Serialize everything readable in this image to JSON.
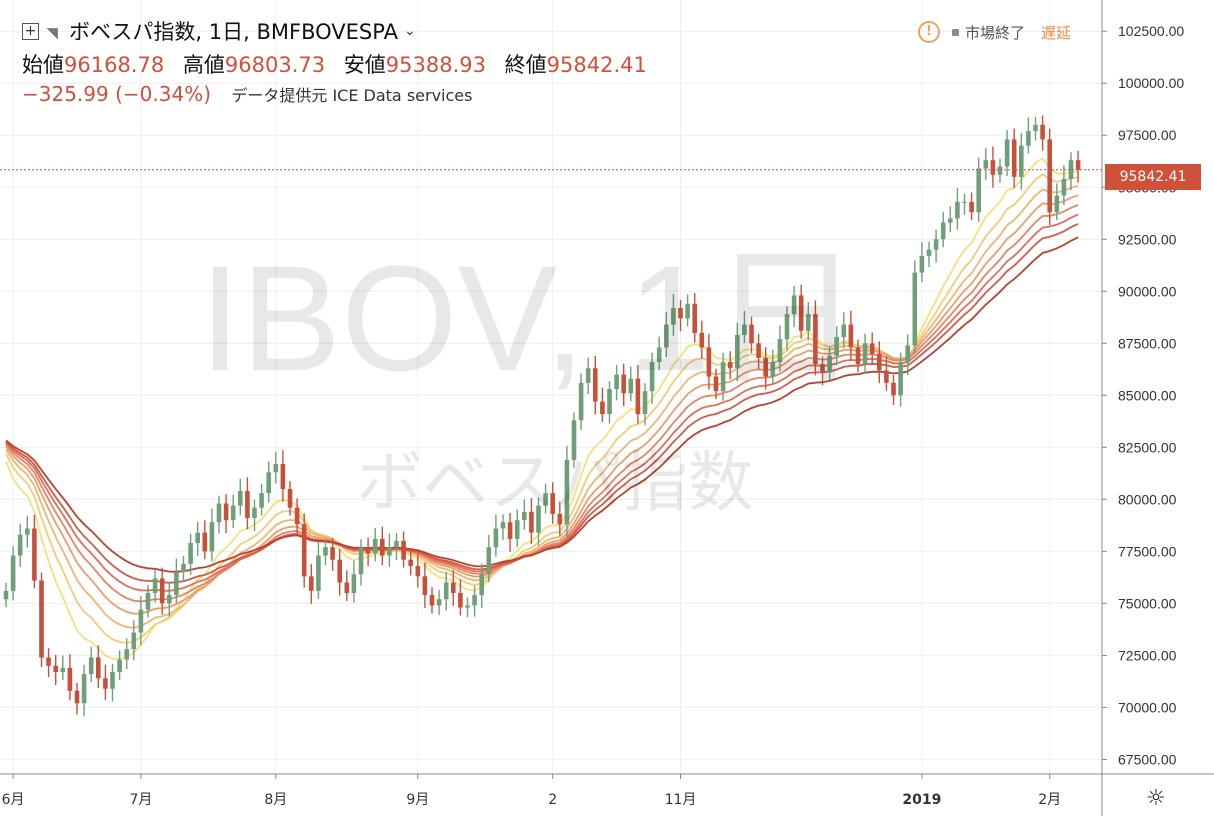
{
  "header": {
    "symbol_title": "ボベスパ指数, 1日, BMFBOVESPA",
    "ohlc": [
      {
        "label": "始値",
        "value": "96168.78"
      },
      {
        "label": "高値",
        "value": "96803.73"
      },
      {
        "label": "安値",
        "value": "95388.93"
      },
      {
        "label": "終値",
        "value": "95842.41"
      }
    ],
    "change": "−325.99 (−0.34%)",
    "data_source": "データ提供元 ICE Data services",
    "market_status": "市場終了",
    "delay_label": "遅延"
  },
  "watermark": {
    "line1": "IBOV, 1日",
    "line2": "ボベスパ指数"
  },
  "last_price_label": "95842.41",
  "colors": {
    "up": "#6f9f78",
    "down": "#c8503a",
    "ribbon": [
      "#f6e07c",
      "#f2cc78",
      "#efb574",
      "#eb9d6d",
      "#e68565",
      "#df6e5a",
      "#d35a48",
      "#b5432f"
    ],
    "price_tag": "#d0503a"
  },
  "icons": [
    "plus-box-icon",
    "flag-icon",
    "chevron-down-icon",
    "alert-circle-icon",
    "gear-icon"
  ],
  "chart_data": {
    "type": "candlestick",
    "y_axis": {
      "ticks": [
        67500,
        70000,
        72500,
        75000,
        77500,
        80000,
        82500,
        85000,
        87500,
        90000,
        92500,
        95000,
        97500,
        100000,
        102500
      ],
      "tick_labels": [
        "67500.00",
        "70000.00",
        "72500.00",
        "75000.00",
        "77500.00",
        "80000.00",
        "82500.00",
        "85000.00",
        "87500.00",
        "90000.00",
        "92500.00",
        "95000.00",
        "97500.00",
        "100000.00",
        "102500.00"
      ],
      "range": [
        66800,
        104000
      ]
    },
    "x_axis": {
      "tick_labels": [
        "6月",
        "7月",
        "8月",
        "9月",
        "2",
        "11月",
        "2019",
        "2月"
      ],
      "tick_bar_index": [
        1,
        19,
        38,
        58,
        77,
        95,
        129,
        147
      ]
    },
    "last_price": 95842.41,
    "closes": [
      75600,
      77300,
      78300,
      78600,
      76100,
      72400,
      72000,
      71700,
      71900,
      70800,
      70200,
      71600,
      72400,
      71400,
      70900,
      71700,
      72300,
      72800,
      73600,
      74700,
      75500,
      76200,
      75000,
      75400,
      76500,
      76900,
      77900,
      78400,
      77500,
      78900,
      79800,
      79000,
      79700,
      80400,
      79100,
      79600,
      80300,
      81300,
      81700,
      80500,
      79600,
      78800,
      76300,
      75600,
      77300,
      77700,
      77100,
      76000,
      75500,
      76400,
      77700,
      77400,
      78100,
      77300,
      77700,
      78000,
      77100,
      76800,
      76300,
      75400,
      74900,
      75200,
      76000,
      75500,
      74800,
      74900,
      75400,
      76400,
      77700,
      78600,
      78900,
      78100,
      79000,
      79400,
      78400,
      79700,
      80300,
      79300,
      78800,
      81900,
      83800,
      85600,
      86300,
      84700,
      84100,
      85300,
      86000,
      85100,
      85800,
      84100,
      85200,
      86600,
      87300,
      88400,
      89200,
      88700,
      89400,
      88000,
      87300,
      85900,
      85200,
      86600,
      86300,
      87900,
      88400,
      87500,
      86800,
      85900,
      86600,
      87700,
      88900,
      89800,
      88100,
      88900,
      86500,
      86100,
      86900,
      87800,
      88400,
      87300,
      86500,
      87500,
      87000,
      86200,
      85600,
      85000,
      86600,
      87400,
      90900,
      91700,
      92000,
      92500,
      93300,
      93500,
      94300,
      94300,
      93800,
      95900,
      96300,
      95600,
      96000,
      97300,
      95500,
      97000,
      97700,
      98000,
      97300,
      93800,
      94600,
      95400,
      96300,
      95842.41
    ]
  }
}
